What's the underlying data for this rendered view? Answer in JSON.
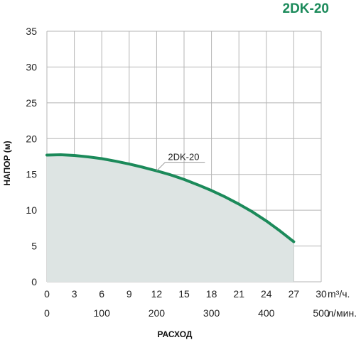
{
  "chart_data": {
    "type": "area",
    "title": "2DK-20",
    "ylabel": "НАПОР (м)",
    "xlabel": "РАСХОД",
    "x_unit_primary": "m³/ч.",
    "x_unit_secondary": "л/мин.",
    "xlim": [
      0,
      30
    ],
    "ylim": [
      0,
      35
    ],
    "x_ticks": [
      "0",
      "3",
      "6",
      "9",
      "12",
      "15",
      "18",
      "21",
      "24",
      "27",
      "30"
    ],
    "x2_ticks": [
      "0",
      "100",
      "200",
      "300",
      "400",
      "500"
    ],
    "y_ticks": [
      "0",
      "5",
      "10",
      "15",
      "20",
      "25",
      "30",
      "35"
    ],
    "grid": true,
    "series": [
      {
        "name": "2DK-20",
        "color": "#1b8a5a",
        "fill": "#dde4e3",
        "x": [
          0,
          1.5,
          3,
          4.5,
          6,
          7.5,
          9,
          10.5,
          12,
          13.5,
          15,
          16.5,
          18,
          19.5,
          21,
          22.5,
          24,
          25.5,
          27
        ],
        "y": [
          17.7,
          17.75,
          17.65,
          17.45,
          17.2,
          16.85,
          16.45,
          16.0,
          15.5,
          14.95,
          14.3,
          13.55,
          12.75,
          11.85,
          10.85,
          9.75,
          8.5,
          7.1,
          5.6
        ]
      }
    ]
  }
}
